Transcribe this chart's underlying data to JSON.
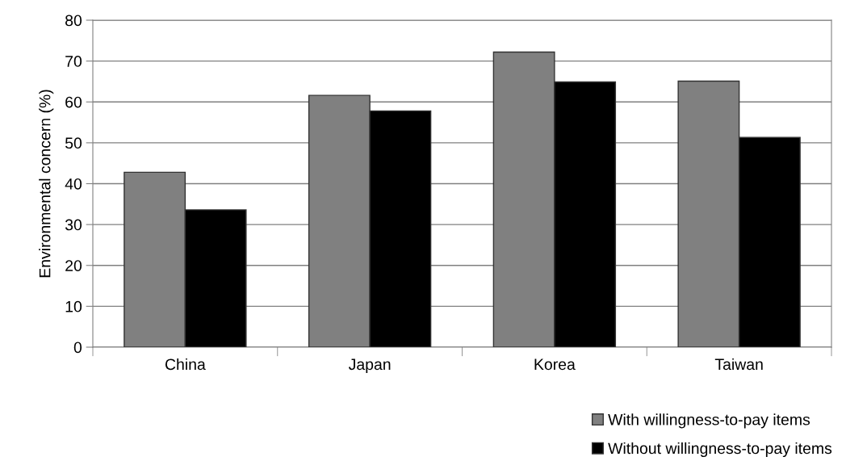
{
  "chart_data": {
    "type": "bar",
    "ylabel": "Environmental concern (%)",
    "categories": [
      "China",
      "Japan",
      "Korea",
      "Taiwan"
    ],
    "series": [
      {
        "name": "With willingness-to-pay items",
        "color": "#808080",
        "values": [
          42.8,
          61.6,
          72.2,
          65.1
        ]
      },
      {
        "name": "Without willingness-to-pay items",
        "color": "#000000",
        "values": [
          33.6,
          57.8,
          64.9,
          51.3
        ]
      }
    ],
    "ylim": [
      0,
      80
    ],
    "yticks": [
      0,
      10,
      20,
      30,
      40,
      50,
      60,
      70,
      80
    ],
    "grid": "y",
    "legend": "bottom right"
  }
}
